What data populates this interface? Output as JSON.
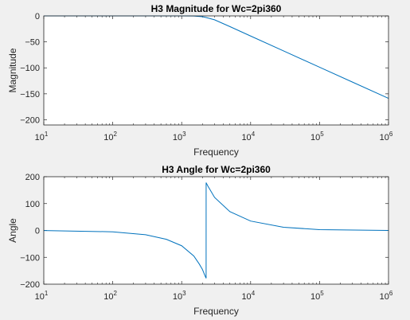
{
  "chart_data": [
    {
      "type": "line",
      "title": "H3 Magnitude for Wc=2pi360",
      "xlabel": "Frequency",
      "ylabel": "Magnitude",
      "xscale": "log",
      "xlim": [
        10,
        1000000
      ],
      "ylim": [
        -210,
        0
      ],
      "x_ticks": [
        {
          "value": 10,
          "base": "10",
          "exp": "1"
        },
        {
          "value": 100,
          "base": "10",
          "exp": "2"
        },
        {
          "value": 1000,
          "base": "10",
          "exp": "3"
        },
        {
          "value": 10000,
          "base": "10",
          "exp": "4"
        },
        {
          "value": 100000,
          "base": "10",
          "exp": "5"
        },
        {
          "value": 1000000,
          "base": "10",
          "exp": "6"
        }
      ],
      "y_ticks": [
        {
          "value": 0,
          "label": "0"
        },
        {
          "value": -50,
          "label": "-50"
        },
        {
          "value": -100,
          "label": "-100"
        },
        {
          "value": -150,
          "label": "-150"
        },
        {
          "value": -200,
          "label": "-200"
        }
      ],
      "grid": false,
      "line_color": "#0072bd",
      "series": [
        {
          "x": [
            10,
            100,
            500,
            1000,
            1500,
            2000,
            2262,
            3000,
            5000,
            10000,
            30000,
            100000,
            300000,
            1000000
          ],
          "y": [
            0,
            0,
            0,
            0,
            -0.1,
            -1.5,
            -3,
            -7.5,
            -20.5,
            -38.7,
            -67.4,
            -98.8,
            -127.4,
            -158.8
          ]
        }
      ]
    },
    {
      "type": "line",
      "title": "H3 Angle for Wc=2pi360",
      "xlabel": "Frequency",
      "ylabel": "Angle",
      "xscale": "log",
      "xlim": [
        10,
        1000000
      ],
      "ylim": [
        -200,
        200
      ],
      "x_ticks": [
        {
          "value": 10,
          "base": "10",
          "exp": "1"
        },
        {
          "value": 100,
          "base": "10",
          "exp": "2"
        },
        {
          "value": 1000,
          "base": "10",
          "exp": "3"
        },
        {
          "value": 10000,
          "base": "10",
          "exp": "4"
        },
        {
          "value": 100000,
          "base": "10",
          "exp": "5"
        },
        {
          "value": 1000000,
          "base": "10",
          "exp": "6"
        }
      ],
      "y_ticks": [
        {
          "value": 200,
          "label": "200"
        },
        {
          "value": 100,
          "label": "100"
        },
        {
          "value": 0,
          "label": "0"
        },
        {
          "value": -100,
          "label": "-100"
        },
        {
          "value": -200,
          "label": "-200"
        }
      ],
      "grid": false,
      "line_color": "#0072bd",
      "series": [
        {
          "x": [
            10,
            100,
            300,
            600,
            1000,
            1500,
            1800,
            2000,
            2150,
            2262,
            2263,
            2400,
            3000,
            5000,
            10000,
            30000,
            100000,
            1000000
          ],
          "y": [
            -0.5,
            -5,
            -16,
            -33,
            -57,
            -95,
            -125,
            -145,
            -165,
            -178,
            178,
            165,
            123,
            70,
            35,
            12,
            3,
            0
          ]
        }
      ]
    }
  ]
}
